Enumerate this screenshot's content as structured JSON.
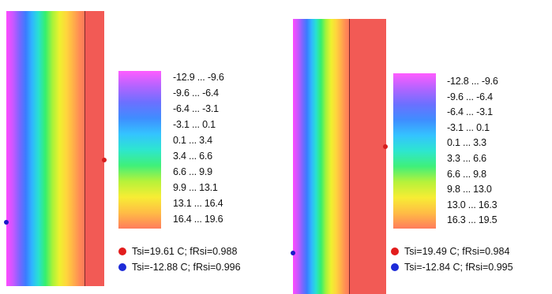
{
  "panels": [
    {
      "legend": [
        "-12.9 ... -9.6",
        "-9.6 ... -6.4",
        "-6.4 ... -3.1",
        "-3.1 ... 0.1",
        "0.1 ... 3.4",
        "3.4 ... 6.6",
        "6.6 ... 9.9",
        "9.9 ... 13.1",
        "13.1 ... 16.4",
        "16.4 ... 19.6"
      ],
      "result_interior": "Tsi=19.61 C; fRsi=0.988",
      "result_exterior": "Tsi=-12.88 C; fRsi=0.996"
    },
    {
      "legend": [
        "-12.8 ... -9.6",
        "-9.6 ... -6.4",
        "-6.4 ... -3.1",
        "-3.1 ... 0.1",
        "0.1 ... 3.3",
        "3.3 ... 6.6",
        "6.6 ... 9.8",
        "9.8 ... 13.0",
        "13.0 ... 16.3",
        "16.3 ... 19.5"
      ],
      "result_interior": "Tsi=19.49 C; fRsi=0.984",
      "result_exterior": "Tsi=-12.84 C; fRsi=0.995"
    }
  ],
  "colors": {
    "interior_marker": "#e21d1d",
    "exterior_marker": "#1d2bd8",
    "wall_solid_layer": "#f25a55"
  }
}
